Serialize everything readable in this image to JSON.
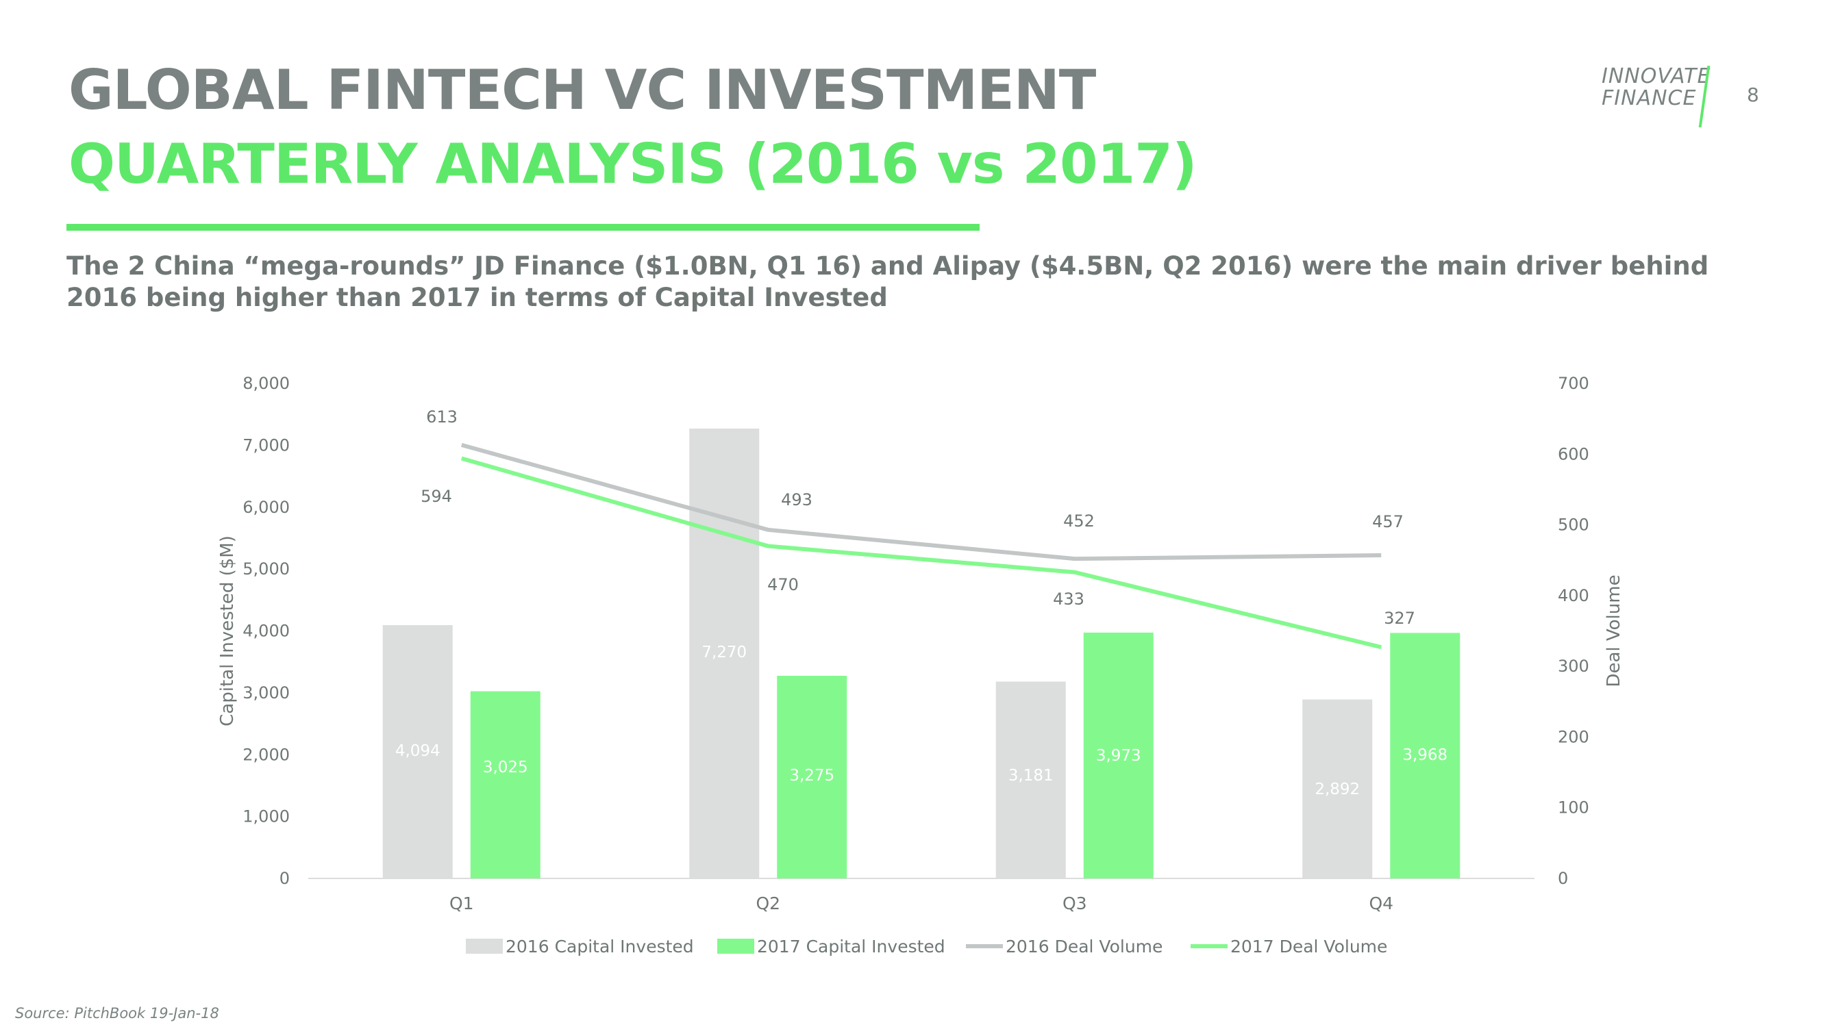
{
  "header": {
    "title_line1": "GLOBAL FINTECH VC INVESTMENT",
    "title_line2": "QUARTERLY ANALYSIS (2016 vs 2017)",
    "subtitle": "The 2 China “mega-rounds” JD Finance ($1.0BN, Q1 16) and Alipay ($4.5BN, Q2 2016) were the main driver behind 2016 being higher than 2017 in terms of Capital Invested",
    "page_number": "8"
  },
  "logo": {
    "line1": "INNOVATE",
    "line2": "FINANCE"
  },
  "footer": {
    "source": "Source: PitchBook 19-Jan-18"
  },
  "colors": {
    "title_gray": "#7a8382",
    "accent_green": "#5ee86a",
    "bar_2016": "#dcdddd",
    "bar_2017": "#83f98d",
    "line_2016": "#c3c6c6",
    "line_2017": "#83f98d",
    "axis_text": "#6f7776"
  },
  "chart_data": {
    "type": "bar",
    "categories": [
      "Q1",
      "Q2",
      "Q3",
      "Q4"
    ],
    "bar_series": [
      {
        "name": "2016 Capital Invested",
        "values": [
          4094,
          7270,
          3181,
          2892
        ],
        "labels": [
          "4,094",
          "7,270",
          "3,181",
          "2,892"
        ]
      },
      {
        "name": "2017 Capital Invested",
        "values": [
          3025,
          3275,
          3973,
          3968
        ],
        "labels": [
          "3,025",
          "3,275",
          "3,973",
          "3,968"
        ]
      }
    ],
    "line_series": [
      {
        "name": "2016 Deal Volume",
        "values": [
          613,
          493,
          452,
          457
        ]
      },
      {
        "name": "2017 Deal Volume",
        "values": [
          594,
          470,
          433,
          327
        ]
      }
    ],
    "ylabel": "Capital Invested ($M)",
    "y2label": "Deal Volume",
    "ylim": [
      0,
      8000
    ],
    "y2lim": [
      0,
      700
    ],
    "y_ticks": [
      "0",
      "1,000",
      "2,000",
      "3,000",
      "4,000",
      "5,000",
      "6,000",
      "7,000",
      "8,000"
    ],
    "y2_ticks": [
      "0",
      "100",
      "200",
      "300",
      "400",
      "500",
      "600",
      "700"
    ],
    "grid": false,
    "legend_position": "bottom"
  }
}
